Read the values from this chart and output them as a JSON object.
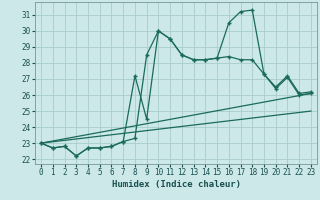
{
  "xlabel": "Humidex (Indice chaleur)",
  "background_color": "#cce8e8",
  "grid_color": "#aacccc",
  "line_color": "#1a6b5a",
  "xlim": [
    -0.5,
    23.5
  ],
  "ylim": [
    21.7,
    31.8
  ],
  "yticks": [
    22,
    23,
    24,
    25,
    26,
    27,
    28,
    29,
    30,
    31
  ],
  "xticks": [
    0,
    1,
    2,
    3,
    4,
    5,
    6,
    7,
    8,
    9,
    10,
    11,
    12,
    13,
    14,
    15,
    16,
    17,
    18,
    19,
    20,
    21,
    22,
    23
  ],
  "series1_x": [
    0,
    1,
    2,
    3,
    4,
    5,
    6,
    7,
    8,
    9,
    10,
    11,
    12,
    13,
    14,
    15,
    16,
    17,
    18,
    19,
    20,
    21,
    22,
    23
  ],
  "series1_y": [
    23.0,
    22.7,
    22.8,
    22.2,
    22.7,
    22.7,
    22.8,
    23.1,
    27.2,
    24.5,
    30.0,
    29.5,
    28.5,
    28.2,
    28.2,
    28.3,
    28.4,
    28.2,
    28.2,
    27.3,
    26.4,
    27.1,
    26.0,
    26.1
  ],
  "series2_x": [
    0,
    1,
    2,
    3,
    4,
    5,
    6,
    7,
    8,
    9,
    10,
    11,
    12,
    13,
    14,
    15,
    16,
    17,
    18,
    19,
    20,
    21,
    22,
    23
  ],
  "series2_y": [
    23.0,
    22.7,
    22.8,
    22.2,
    22.7,
    22.7,
    22.8,
    23.1,
    23.3,
    28.5,
    30.0,
    29.5,
    28.5,
    28.2,
    28.2,
    28.3,
    30.5,
    31.2,
    31.3,
    27.3,
    26.5,
    27.2,
    26.1,
    26.2
  ],
  "series3_x": [
    0,
    23
  ],
  "series3_y": [
    23.0,
    26.1
  ],
  "series4_x": [
    0,
    23
  ],
  "series4_y": [
    23.0,
    25.0
  ]
}
